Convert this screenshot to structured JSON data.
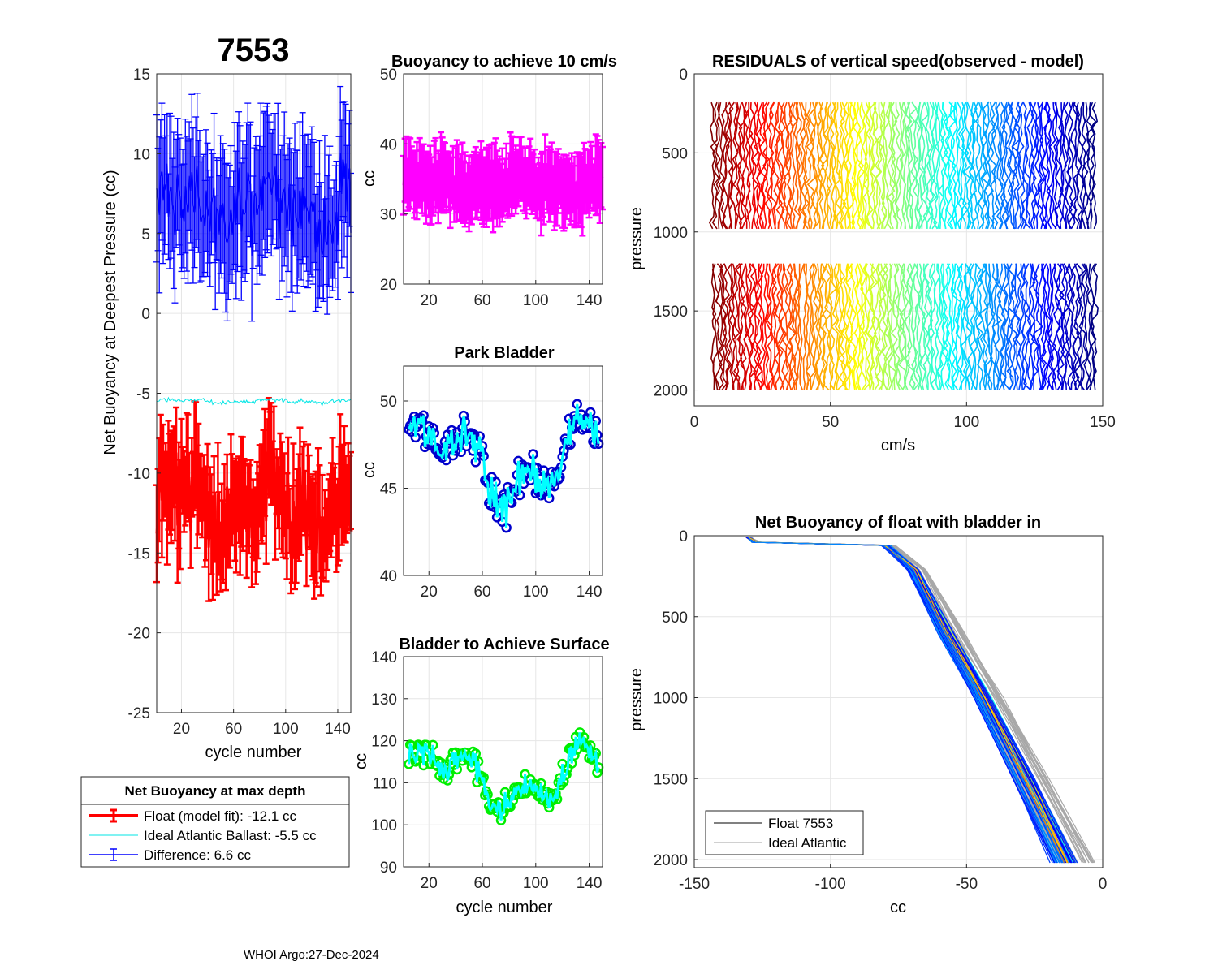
{
  "figure": {
    "float_id": "7553",
    "footer": "WHOI Argo:27-Dec-2024"
  },
  "legend": {
    "title": "Net Buoyancy at max depth",
    "items": [
      {
        "label": "Float (model fit): -12.1 cc",
        "color": "#ff0000"
      },
      {
        "label": "Ideal Atlantic Ballast:  -5.5 cc",
        "color": "#00e5e5"
      },
      {
        "label": "Difference:   6.6 cc",
        "color": "#0000ff"
      }
    ]
  },
  "legend2": {
    "items": [
      {
        "label": "Float 7553",
        "color": "#000000"
      },
      {
        "label": "Ideal Atlantic",
        "color": "#a0a0a0"
      }
    ]
  },
  "chart_data": [
    {
      "id": "net_buoyancy",
      "type": "errorbar",
      "title": "",
      "xlabel": "cycle number",
      "ylabel": "Net Buoyancy at Deepest Pressure (cc)",
      "xlim": [
        1,
        150
      ],
      "ylim": [
        -25,
        15
      ],
      "xticks": [
        20,
        60,
        100,
        140
      ],
      "yticks": [
        -25,
        -20,
        -15,
        -10,
        -5,
        0,
        5,
        10,
        15
      ],
      "cycles": [
        1,
        150
      ],
      "series": [
        {
          "name": "Float (model fit)",
          "color": "#ff0000",
          "mean": -12.1,
          "amp": 3.2,
          "err": 2.8
        },
        {
          "name": "Ideal Atlantic Ballast",
          "color": "#00e5e5",
          "mean": -5.5,
          "amp": 0.2,
          "err": 0
        },
        {
          "name": "Difference",
          "color": "#0000ff",
          "mean": 6.6,
          "amp": 3.2,
          "err": 3.8
        }
      ],
      "ballast_value": -5.5
    },
    {
      "id": "buoyancy_10cms",
      "type": "errorbar",
      "title": "Buoyancy to achieve 10 cm/s",
      "xlabel": "",
      "ylabel": "cc",
      "xlim": [
        1,
        150
      ],
      "ylim": [
        20,
        50
      ],
      "xticks": [
        20,
        60,
        100,
        140
      ],
      "yticks": [
        20,
        30,
        40,
        50
      ],
      "series": [
        {
          "name": "Buoyancy",
          "color": "#ff00ff",
          "mean": 34.5,
          "amp": 2.5,
          "err": 4.5
        }
      ]
    },
    {
      "id": "park_bladder",
      "type": "line",
      "title": "Park Bladder",
      "xlabel": "",
      "ylabel": "cc",
      "xlim": [
        1,
        150
      ],
      "ylim": [
        40,
        52
      ],
      "xticks": [
        20,
        60,
        100,
        140
      ],
      "yticks": [
        40,
        45,
        50
      ],
      "series": [
        {
          "name": "Park bladder",
          "color": "#00ffff",
          "marker_color": "#0000cc",
          "mean": 46.5,
          "amp": 2.2
        }
      ]
    },
    {
      "id": "bladder_surface",
      "type": "line",
      "title": "Bladder to Achieve Surface",
      "xlabel": "cycle number",
      "ylabel": "cc",
      "xlim": [
        1,
        150
      ],
      "ylim": [
        90,
        140
      ],
      "xticks": [
        20,
        60,
        100,
        140
      ],
      "yticks": [
        90,
        100,
        110,
        120,
        130,
        140
      ],
      "series": [
        {
          "name": "Surface bladder",
          "color": "#00ffff",
          "marker_color": "#00ee00",
          "mean": 111,
          "amp": 7
        }
      ]
    },
    {
      "id": "residuals",
      "type": "line",
      "title": "RESIDUALS of vertical speed(observed - model)",
      "xlabel": "cm/s",
      "ylabel": "pressure",
      "xlim": [
        0,
        150
      ],
      "ylim": [
        0,
        2100
      ],
      "y_reversed": true,
      "xticks": [
        0,
        50,
        100,
        150
      ],
      "yticks": [
        0,
        500,
        1000,
        1500,
        2000
      ],
      "bands": [
        [
          180,
          1000
        ],
        [
          1200,
          2000
        ]
      ],
      "offset_range": [
        7,
        147
      ],
      "n_profiles": 148,
      "colormap": "jet"
    },
    {
      "id": "net_buoyancy_bladder_in",
      "type": "line",
      "title": "Net Buoyancy of float with bladder in",
      "xlabel": "cc",
      "ylabel": "pressure",
      "xlim": [
        -150,
        0
      ],
      "ylim": [
        0,
        2050
      ],
      "y_reversed": true,
      "xticks": [
        -150,
        -100,
        -50,
        0
      ],
      "yticks": [
        0,
        500,
        1000,
        1500,
        2000
      ],
      "profile_nodes": [
        [
          -130,
          10
        ],
        [
          -128,
          40
        ],
        [
          -80,
          60
        ],
        [
          -70,
          210
        ],
        [
          -58,
          600
        ],
        [
          -45,
          1000
        ],
        [
          -30,
          1500
        ],
        [
          -15,
          2020
        ]
      ],
      "n_float_profiles": 60,
      "n_ideal_profiles": 40
    }
  ]
}
